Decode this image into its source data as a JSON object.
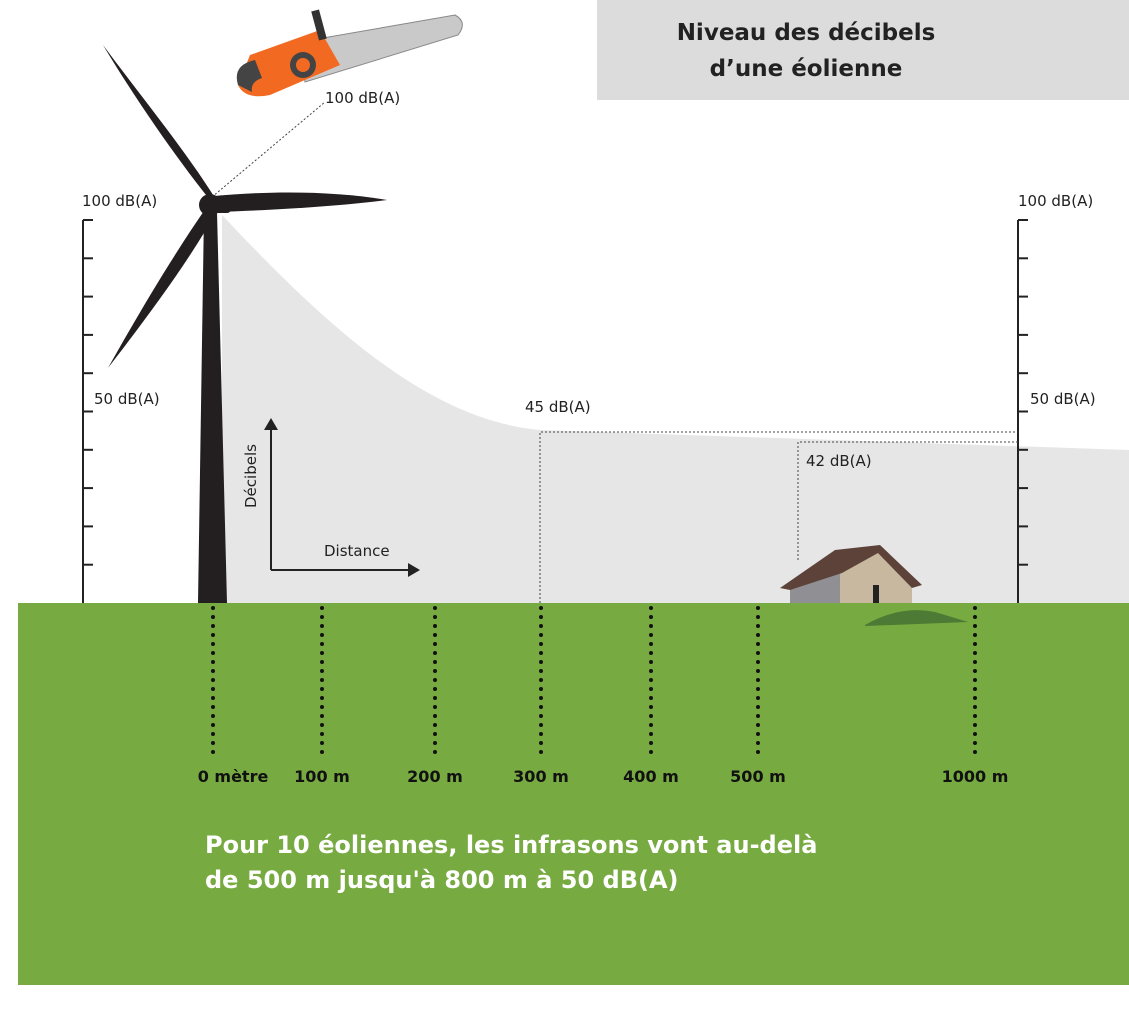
{
  "title": {
    "lines": [
      "Niveau des décibels",
      "d’une éolienne"
    ]
  },
  "chainsaw_label": "100 dB(A)",
  "left_scale": {
    "top": "100 dB(A)",
    "middle": "50 dB(A)"
  },
  "right_scale": {
    "top": "100 dB(A)",
    "middle": "50 dB(A)"
  },
  "levels": {
    "at_300": "45 dB(A)",
    "at_house": "42 dB(A)"
  },
  "axes": {
    "y": "Décibels",
    "x": "Distance"
  },
  "distances": [
    "0 mètre",
    "100 m",
    "200 m",
    "300 m",
    "400 m",
    "500 m",
    "1000 m"
  ],
  "note": {
    "lines": [
      "Pour 10 éoliennes, les infrasons vont au-delà",
      "de 500 m jusqu'à 800 m à 50 dB(A)"
    ]
  }
}
